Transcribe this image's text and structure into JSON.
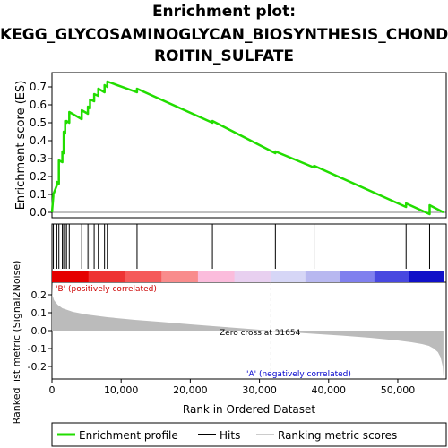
{
  "title_lines": [
    "Enrichment plot:",
    "KEGG_GLYCOSAMINOGLYCAN_BIOSYNTHESIS_CHOND",
    "ROITIN_SULFATE"
  ],
  "colors": {
    "enrichment": "#22dd00",
    "hits": "#000000",
    "metric_fill": "#bbbbbb",
    "zero_line": "#cccccc",
    "pos_label": "#cc0000",
    "neg_label": "#0000cc",
    "axis": "#000000"
  },
  "chart_data": [
    {
      "type": "line",
      "name": "enrichment-profile",
      "ylabel": "Enrichment score (ES)",
      "xlim": [
        0,
        57000
      ],
      "ylim": [
        -0.03,
        0.78
      ],
      "yticks": [
        0.0,
        0.1,
        0.2,
        0.3,
        0.4,
        0.5,
        0.6,
        0.7
      ],
      "ytick_labels": [
        "0.0",
        "0.1",
        "0.2",
        "0.3",
        "0.4",
        "0.5",
        "0.6",
        "0.7"
      ],
      "grid": false,
      "x": [
        0,
        200,
        200,
        700,
        700,
        1000,
        1000,
        1500,
        1500,
        1700,
        1700,
        1900,
        1900,
        2100,
        2100,
        2500,
        2500,
        4300,
        4300,
        5200,
        5200,
        5500,
        5500,
        6100,
        6100,
        6700,
        6700,
        7600,
        7600,
        8000,
        8000,
        12300,
        12300,
        23200,
        23200,
        32300,
        32300,
        37900,
        37900,
        51200,
        51200,
        54600,
        54600,
        56600
      ],
      "y": [
        0.0,
        0.09,
        0.1,
        0.15,
        0.17,
        0.16,
        0.29,
        0.28,
        0.34,
        0.33,
        0.45,
        0.44,
        0.51,
        0.5,
        0.51,
        0.5,
        0.56,
        0.52,
        0.57,
        0.55,
        0.59,
        0.58,
        0.63,
        0.62,
        0.66,
        0.65,
        0.69,
        0.67,
        0.71,
        0.7,
        0.73,
        0.67,
        0.69,
        0.5,
        0.51,
        0.33,
        0.34,
        0.25,
        0.26,
        0.03,
        0.05,
        -0.01,
        0.04,
        0.0
      ]
    },
    {
      "type": "hits",
      "name": "hits",
      "positions": [
        200,
        700,
        1000,
        1500,
        1700,
        1900,
        2100,
        2500,
        4300,
        5200,
        5500,
        6100,
        6700,
        7600,
        8000,
        12300,
        23200,
        32300,
        37900,
        51200,
        54600
      ]
    },
    {
      "type": "area",
      "name": "ranked-list-metric",
      "ylabel": "Ranked list metric (Signal2Noise)",
      "xlabel": "Rank in Ordered Dataset",
      "xlim": [
        0,
        57000
      ],
      "ylim": [
        -0.27,
        0.27
      ],
      "xticks": [
        0,
        10000,
        20000,
        30000,
        40000,
        50000
      ],
      "xtick_labels": [
        "0",
        "10,000",
        "20,000",
        "30,000",
        "40,000",
        "50,000"
      ],
      "yticks": [
        -0.2,
        -0.1,
        0.0,
        0.1,
        0.2
      ],
      "ytick_labels": [
        "-0.2",
        "-0.1",
        "0.0",
        "0.1",
        "0.2"
      ],
      "x": [
        0,
        50,
        300,
        800,
        1500,
        3000,
        5000,
        8000,
        12000,
        16000,
        20000,
        25000,
        29000,
        31654,
        34000,
        38000,
        42000,
        46000,
        50000,
        52000,
        53500,
        54500,
        55200,
        55800,
        56200,
        56500,
        56600
      ],
      "y": [
        0.27,
        0.2,
        0.17,
        0.145,
        0.125,
        0.105,
        0.09,
        0.075,
        0.06,
        0.048,
        0.035,
        0.02,
        0.008,
        0.0,
        -0.008,
        -0.018,
        -0.028,
        -0.04,
        -0.055,
        -0.065,
        -0.075,
        -0.085,
        -0.1,
        -0.12,
        -0.15,
        -0.2,
        -0.26
      ],
      "zero_cross": 31654,
      "zero_cross_label": "Zero cross at 31654",
      "pos_label": "'B' (positively correlated)",
      "neg_label": "'A' (negatively correlated)"
    }
  ],
  "legend": {
    "placement": "bottom",
    "items": [
      {
        "label": "Enrichment profile",
        "kind": "line"
      },
      {
        "label": "Hits",
        "kind": "hit"
      },
      {
        "label": "Ranking metric scores",
        "kind": "metric"
      }
    ]
  }
}
